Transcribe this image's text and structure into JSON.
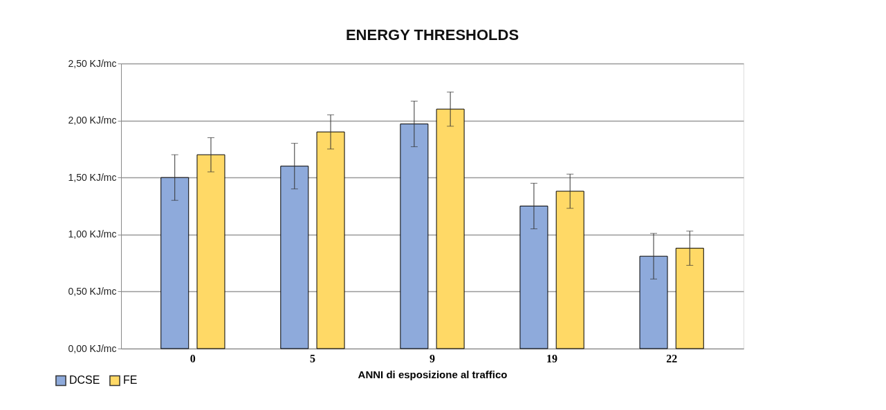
{
  "chart_data": {
    "type": "bar",
    "title": "ENERGY THRESHOLDS",
    "xlabel": "ANNI di esposizione al traffico",
    "categories": [
      "0",
      "5",
      "9",
      "19",
      "22"
    ],
    "series": [
      {
        "name": "DCSE",
        "color": "#8eaadb",
        "values": [
          1.5,
          1.6,
          1.97,
          1.25,
          0.81
        ],
        "errors": [
          0.2,
          0.2,
          0.2,
          0.2,
          0.2
        ]
      },
      {
        "name": "FE",
        "color": "#ffd966",
        "values": [
          1.7,
          1.9,
          2.1,
          1.38,
          0.88
        ],
        "errors": [
          0.15,
          0.15,
          0.15,
          0.15,
          0.15
        ]
      }
    ],
    "ylim": [
      0,
      2.5
    ],
    "yticks": [
      {
        "value": 0,
        "label": "0,00 KJ/mc"
      },
      {
        "value": 0.5,
        "label": "0,50 KJ/mc"
      },
      {
        "value": 1,
        "label": "1,00 KJ/mc"
      },
      {
        "value": 1.5,
        "label": "1,50 KJ/mc"
      },
      {
        "value": 2,
        "label": "2,00 KJ/mc"
      },
      {
        "value": 2.5,
        "label": "2,50 KJ/mc"
      }
    ],
    "grid": "y",
    "legend": "bottom left"
  }
}
